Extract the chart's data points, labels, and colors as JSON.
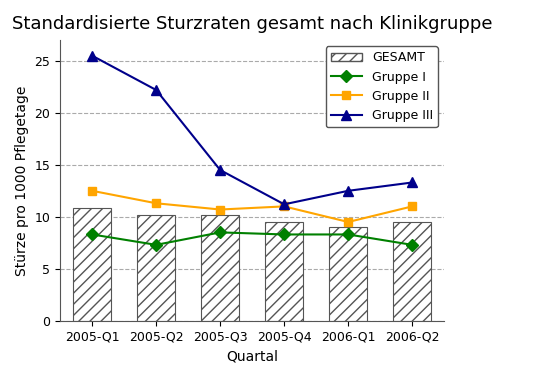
{
  "title": "Standardisierte Sturzraten gesamt nach Klinikgruppe",
  "xlabel": "Quartal",
  "ylabel": "Stürze pro 1000 Pflegetage",
  "categories": [
    "2005-Q1",
    "2005-Q2",
    "2005-Q3",
    "2005-Q4",
    "2006-Q1",
    "2006-Q2"
  ],
  "gesamt_bars": [
    10.8,
    10.2,
    10.2,
    9.5,
    9.0,
    9.5
  ],
  "gruppe1": [
    8.3,
    7.3,
    8.5,
    8.3,
    8.3,
    7.3
  ],
  "gruppe2": [
    12.5,
    11.3,
    10.7,
    11.0,
    9.5,
    11.0
  ],
  "gruppe3": [
    25.5,
    22.2,
    14.5,
    11.2,
    12.5,
    13.3
  ],
  "ylim": [
    0,
    27
  ],
  "yticks": [
    0,
    5,
    10,
    15,
    20,
    25
  ],
  "color_gruppe1": "#008000",
  "color_gruppe2": "#FFA500",
  "color_gruppe3": "#00008B",
  "bar_hatch": "///",
  "bar_facecolor": "#ffffff",
  "bar_edgecolor": "#555555",
  "background_color": "#ffffff",
  "grid_color": "#aaaaaa",
  "title_fontsize": 13,
  "axis_label_fontsize": 10,
  "tick_fontsize": 9,
  "legend_fontsize": 9
}
